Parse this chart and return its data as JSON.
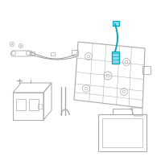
{
  "bg_color": "#ffffff",
  "line_color": "#aaaaaa",
  "line_color2": "#999999",
  "highlight_color": "#00aabb",
  "highlight_fill": "#88ddee",
  "fig_w": 2.0,
  "fig_h": 2.0,
  "dpi": 100
}
